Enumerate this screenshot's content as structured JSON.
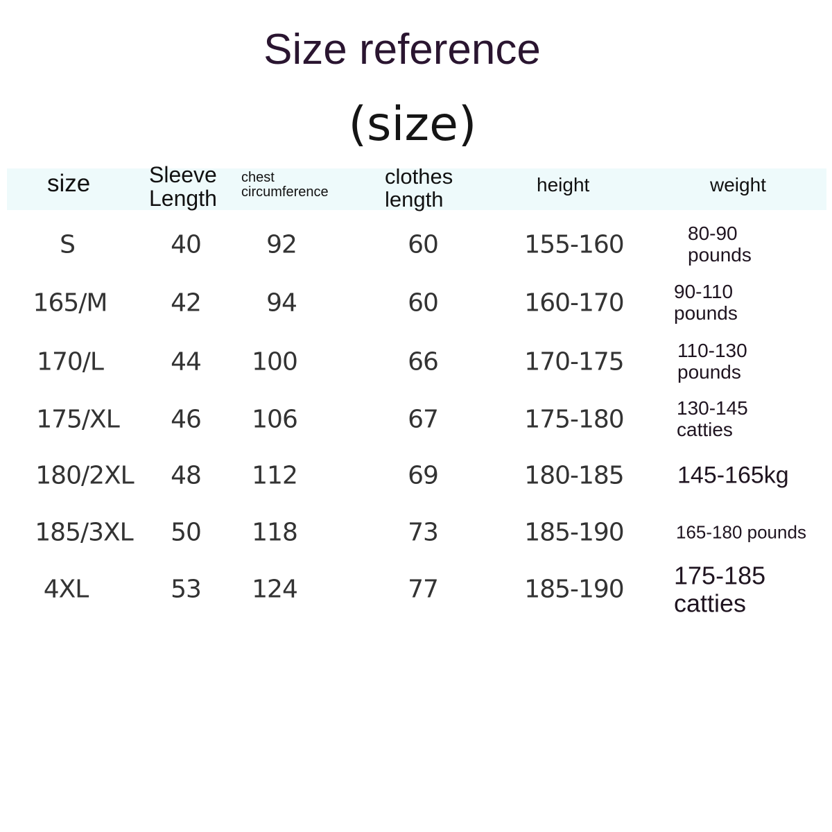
{
  "title": "Size reference",
  "subtitle": "(size)",
  "colors": {
    "header_band": "#eefafb",
    "title": "#2a1530"
  },
  "headers": {
    "size": "size",
    "sleeve_1": "Sleeve",
    "sleeve_2": "Length",
    "chest_1": "chest",
    "chest_2": "circumference",
    "clothes_1": "clothes",
    "clothes_2": "length",
    "height": "height",
    "weight": "weight"
  },
  "rows": [
    {
      "size": "S",
      "sleeve": "40",
      "chest": "92",
      "length": "60",
      "height": "155-160",
      "weight_1": "80-90",
      "weight_2": "pounds"
    },
    {
      "size": "165/M",
      "sleeve": "42",
      "chest": "94",
      "length": "60",
      "height": "160-170",
      "weight_1": "90-110",
      "weight_2": "pounds"
    },
    {
      "size": "170/L",
      "sleeve": "44",
      "chest": "100",
      "length": "66",
      "height": "170-175",
      "weight_1": "110-130",
      "weight_2": "pounds"
    },
    {
      "size": "175/XL",
      "sleeve": "46",
      "chest": "106",
      "length": "67",
      "height": "175-180",
      "weight_1": "130-145",
      "weight_2": "catties"
    },
    {
      "size": "180/2XL",
      "sleeve": "48",
      "chest": "112",
      "length": "69",
      "height": "180-185",
      "weight_1": "145-165kg",
      "weight_2": ""
    },
    {
      "size": "185/3XL",
      "sleeve": "50",
      "chest": "118",
      "length": "73",
      "height": "185-190",
      "weight_1": "165-180 pounds",
      "weight_2": ""
    },
    {
      "size": "4XL",
      "sleeve": "53",
      "chest": "124",
      "length": "77",
      "height": "185-190",
      "weight_1": "175-185",
      "weight_2": "catties"
    }
  ]
}
